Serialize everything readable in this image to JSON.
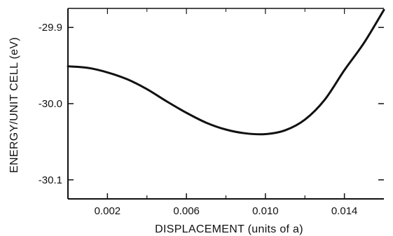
{
  "chart_data": {
    "type": "line",
    "title": "",
    "xlabel": "DISPLACEMENT (units of a)",
    "ylabel": "ENERGY/UNIT CELL (eV)",
    "xlim": [
      0.0,
      0.016
    ],
    "ylim": [
      -30.125,
      -29.875
    ],
    "x_ticks": [
      {
        "value": 0.002,
        "label": "0.002"
      },
      {
        "value": 0.006,
        "label": "0.006"
      },
      {
        "value": 0.01,
        "label": "0.010"
      },
      {
        "value": 0.014,
        "label": "0.014"
      }
    ],
    "x_minor_ticks": [
      0.004,
      0.008,
      0.012
    ],
    "y_ticks": [
      {
        "value": -29.9,
        "label": "-29.9"
      },
      {
        "value": -30.0,
        "label": "-30.0"
      },
      {
        "value": -30.1,
        "label": "-30.1"
      }
    ],
    "grid": false,
    "legend": "none",
    "colors": {
      "line": "#111111",
      "axis": "#111111"
    },
    "series": [
      {
        "x": [
          0.0,
          0.001,
          0.002,
          0.003,
          0.004,
          0.005,
          0.006,
          0.007,
          0.008,
          0.009,
          0.01,
          0.011,
          0.012,
          0.013,
          0.014,
          0.015,
          0.016
        ],
        "y": [
          -29.951,
          -29.953,
          -29.959,
          -29.968,
          -29.981,
          -29.997,
          -30.012,
          -30.025,
          -30.034,
          -30.039,
          -30.04,
          -30.035,
          -30.021,
          -29.995,
          -29.956,
          -29.92,
          -29.877
        ]
      }
    ]
  }
}
